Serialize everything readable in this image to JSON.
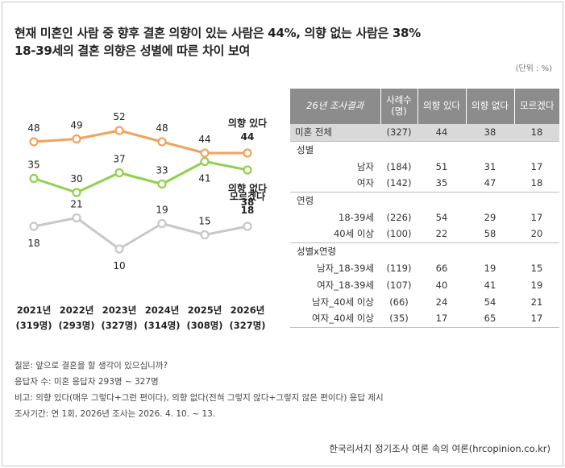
{
  "title_line1": "현재 미혼인 사람 중 향후 결혼 의향이 있는 사람은 44%, 의향 없는 사람은 38%",
  "title_line2": "18-39세의 결혼 의향은 성별에 따른 차이 보여",
  "unit": "(단위 : %)",
  "chart_data": {
    "type": "line",
    "categories": [
      "2021년",
      "2022년",
      "2023년",
      "2024년",
      "2025년",
      "2026년"
    ],
    "category_sub": [
      "(319명)",
      "(293명)",
      "(327명)",
      "(314명)",
      "(308명)",
      "(327명)"
    ],
    "series": [
      {
        "name": "의향 있다",
        "values": [
          48,
          49,
          52,
          48,
          44,
          44
        ],
        "color": "#f0a35e"
      },
      {
        "name": "의향 없다",
        "values": [
          35,
          30,
          37,
          33,
          41,
          38
        ],
        "color": "#8fd14f"
      },
      {
        "name": "모르겠다",
        "values": [
          18,
          21,
          10,
          19,
          15,
          18
        ],
        "color": "#c8c8c8"
      }
    ],
    "legend_placement": "inline at line ends",
    "grid": false
  },
  "table": {
    "headers": [
      "26년 조사결과",
      "사례수\n(명)",
      "의향 있다",
      "의향 없다",
      "모르겠다"
    ],
    "rows": [
      {
        "kind": "total",
        "label": "미혼 전체",
        "n": "(327)",
        "yes": "44",
        "no": "38",
        "dk": "18"
      },
      {
        "kind": "group",
        "label": "성별"
      },
      {
        "kind": "data",
        "label": "남자",
        "n": "(184)",
        "yes": "51",
        "no": "31",
        "dk": "17"
      },
      {
        "kind": "data",
        "label": "여자",
        "n": "(142)",
        "yes": "35",
        "no": "47",
        "dk": "18"
      },
      {
        "kind": "group",
        "label": "연령"
      },
      {
        "kind": "data",
        "label": "18-39세",
        "n": "(226)",
        "yes": "54",
        "no": "29",
        "dk": "17"
      },
      {
        "kind": "data",
        "label": "40세 이상",
        "n": "(100)",
        "yes": "22",
        "no": "58",
        "dk": "20"
      },
      {
        "kind": "group",
        "label": "성별x연령"
      },
      {
        "kind": "data",
        "label": "남자_18-39세",
        "n": "(119)",
        "yes": "66",
        "no": "19",
        "dk": "15"
      },
      {
        "kind": "data",
        "label": "여자_18-39세",
        "n": "(107)",
        "yes": "40",
        "no": "41",
        "dk": "19"
      },
      {
        "kind": "data",
        "label": "남자_40세 이상",
        "n": "(66)",
        "yes": "24",
        "no": "54",
        "dk": "21"
      },
      {
        "kind": "data",
        "label": "여자_40세 이상",
        "n": "(35)",
        "yes": "17",
        "no": "65",
        "dk": "17"
      }
    ]
  },
  "notes": [
    "질문: 앞으로 결혼을 할 생각이 있으십니까?",
    "응답자 수: 미혼 응답자 293명 ~ 327명",
    "비고: 의향 있다(매우 그렇다+그런 편이다), 의향 없다(전혀 그렇지 않다+그렇지 않은 편이다) 응답 제시",
    "조사기간: 연 1회, 2026년 조사는 2026. 4. 10. ~ 13."
  ],
  "source": "한국리서치 정기조사 여론 속의 여론(hrcopinion.co.kr)"
}
